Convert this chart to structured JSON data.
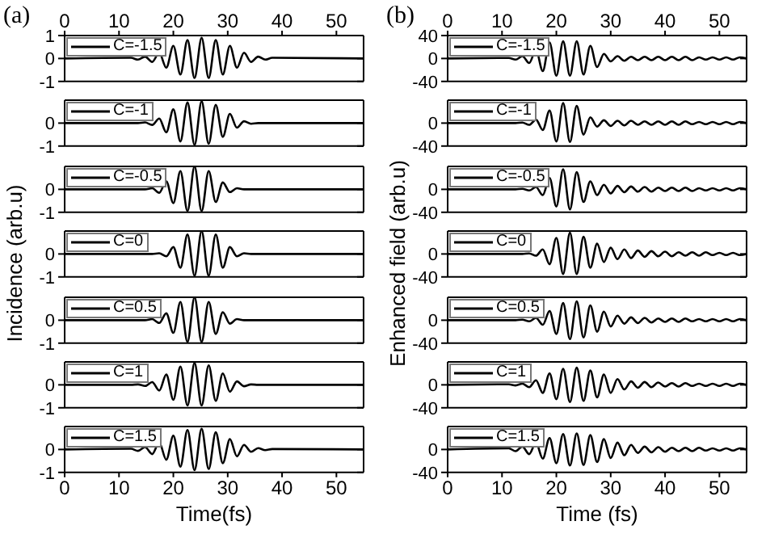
{
  "chart_data": [
    {
      "type": "line",
      "title": "(a)",
      "x2lim": [
        0,
        55
      ],
      "x2ticks": [
        0,
        10,
        20,
        30,
        40,
        50
      ],
      "xlim": [
        0,
        55
      ],
      "xticks": [
        0,
        10,
        20,
        30,
        40,
        50
      ],
      "ylim": [
        -1,
        1
      ],
      "yticks": [
        -1,
        0,
        1
      ],
      "tick_labels": "y",
      "legend": "top left",
      "x": [
        0,
        12.2,
        13.5,
        14.8,
        16.1,
        17.4,
        18.7,
        20,
        21.3,
        22.6,
        23.9,
        25.2,
        26.5,
        27.8,
        29.1,
        30.4,
        31.7,
        33,
        34.3,
        35.6,
        36.9,
        38.2,
        55
      ],
      "series": [
        {
          "name": "C=-1.5",
          "color": "#000000",
          "values": [
            0,
            0.03,
            -0.05,
            0.08,
            -0.15,
            0.25,
            -0.4,
            0.55,
            -0.7,
            0.8,
            -0.85,
            0.9,
            -0.85,
            0.8,
            -0.7,
            0.55,
            -0.4,
            0.25,
            -0.15,
            0.08,
            -0.05,
            0.03,
            0
          ]
        }
      ]
    },
    {
      "type": "line",
      "xlim": [
        0,
        55
      ],
      "xticks": [
        0,
        10,
        20,
        30,
        40,
        50
      ],
      "ylim": [
        -1,
        1
      ],
      "yticks": [
        -1,
        0
      ],
      "tick_labels": "y",
      "legend": "top left",
      "x": [
        0,
        12.2,
        13.5,
        14.8,
        16.1,
        17.4,
        18.7,
        20,
        21.3,
        22.6,
        23.9,
        25.2,
        26.5,
        27.8,
        29.1,
        30.4,
        31.7,
        33,
        34.3,
        35.6,
        36.9,
        38.2,
        55
      ],
      "series": [
        {
          "name": "C=-1",
          "color": "#000000",
          "values": [
            0,
            0,
            0,
            0.03,
            -0.08,
            0.2,
            -0.4,
            0.6,
            -0.8,
            0.9,
            -0.95,
            0.95,
            -0.9,
            0.8,
            -0.6,
            0.4,
            -0.2,
            0.08,
            -0.03,
            0,
            0,
            0,
            0
          ]
        }
      ]
    },
    {
      "type": "line",
      "xlim": [
        0,
        55
      ],
      "xticks": [
        0,
        10,
        20,
        30,
        40,
        50
      ],
      "ylim": [
        -1,
        1
      ],
      "yticks": [
        -1,
        0
      ],
      "tick_labels": "y",
      "legend": "top left",
      "x": [
        0,
        12.2,
        13.5,
        14.8,
        16.1,
        17.4,
        18.7,
        20,
        21.3,
        22.6,
        23.9,
        25.2,
        26.5,
        27.8,
        29.1,
        30.4,
        31.7,
        33,
        34.3,
        35.6,
        36.9,
        38.2,
        55
      ],
      "series": [
        {
          "name": "C=-0.5",
          "color": "#000000",
          "values": [
            0,
            0,
            0,
            0,
            0.05,
            -0.15,
            0.35,
            -0.6,
            0.8,
            -0.95,
            1,
            -0.95,
            0.8,
            -0.55,
            0.3,
            -0.12,
            0.05,
            0,
            0,
            0,
            0,
            0,
            0
          ]
        }
      ]
    },
    {
      "type": "line",
      "ylabel": "Incidence (arb.u)",
      "xlim": [
        0,
        55
      ],
      "xticks": [
        0,
        10,
        20,
        30,
        40,
        50
      ],
      "ylim": [
        -1,
        1
      ],
      "yticks": [
        -1,
        0
      ],
      "tick_labels": "y",
      "legend": "top left",
      "x": [
        0,
        12.2,
        13.5,
        14.8,
        16.1,
        17.4,
        18.7,
        20,
        21.3,
        22.6,
        23.9,
        25.2,
        26.5,
        27.8,
        29.1,
        30.4,
        31.7,
        33,
        34.3,
        35.6,
        36.9,
        38.2,
        55
      ],
      "series": [
        {
          "name": "C=0",
          "color": "#000000",
          "values": [
            0,
            0,
            0,
            0,
            0,
            0.03,
            -0.1,
            0.3,
            -0.6,
            0.85,
            -0.95,
            1,
            -0.95,
            0.85,
            -0.6,
            0.3,
            -0.1,
            0.03,
            0,
            0,
            0,
            0,
            0
          ]
        }
      ]
    },
    {
      "type": "line",
      "xlim": [
        0,
        55
      ],
      "xticks": [
        0,
        10,
        20,
        30,
        40,
        50
      ],
      "ylim": [
        -1,
        1
      ],
      "yticks": [
        -1,
        0
      ],
      "tick_labels": "y",
      "legend": "top left",
      "x": [
        0,
        12.2,
        13.5,
        14.8,
        16.1,
        17.4,
        18.7,
        20,
        21.3,
        22.6,
        23.9,
        25.2,
        26.5,
        27.8,
        29.1,
        30.4,
        31.7,
        33,
        34.3,
        35.6,
        36.9,
        38.2,
        55
      ],
      "series": [
        {
          "name": "C=0.5",
          "color": "#000000",
          "values": [
            0,
            0,
            0,
            0,
            0.05,
            -0.12,
            0.3,
            -0.55,
            0.8,
            -0.95,
            1,
            -0.95,
            0.8,
            -0.6,
            0.35,
            -0.15,
            0.05,
            0,
            0,
            0,
            0,
            0,
            0
          ]
        }
      ]
    },
    {
      "type": "line",
      "xlim": [
        0,
        55
      ],
      "xticks": [
        0,
        10,
        20,
        30,
        40,
        50
      ],
      "ylim": [
        -1,
        1
      ],
      "yticks": [
        -1,
        0
      ],
      "tick_labels": "y",
      "legend": "top left",
      "x": [
        0,
        12.2,
        13.5,
        14.8,
        16.1,
        17.4,
        18.7,
        20,
        21.3,
        22.6,
        23.9,
        25.2,
        26.5,
        27.8,
        29.1,
        30.4,
        31.7,
        33,
        34.3,
        35.6,
        36.9,
        38.2,
        55
      ],
      "series": [
        {
          "name": "C=1",
          "color": "#000000",
          "values": [
            0,
            0,
            0.02,
            -0.05,
            0.12,
            -0.25,
            0.45,
            -0.65,
            0.8,
            -0.9,
            0.95,
            -0.9,
            0.85,
            -0.7,
            0.5,
            -0.3,
            0.15,
            -0.06,
            0.02,
            0,
            0,
            0,
            0
          ]
        }
      ]
    },
    {
      "type": "line",
      "xlabel": "Time(fs)",
      "xlim": [
        0,
        55
      ],
      "xticks": [
        0,
        10,
        20,
        30,
        40,
        50
      ],
      "ylim": [
        -1,
        1
      ],
      "yticks": [
        -1,
        0
      ],
      "legend": "top left",
      "x": [
        0,
        12.2,
        13.5,
        14.8,
        16.1,
        17.4,
        18.7,
        20,
        21.3,
        22.6,
        23.9,
        25.2,
        26.5,
        27.8,
        29.1,
        30.4,
        31.7,
        33,
        34.3,
        35.6,
        36.9,
        38.2,
        55
      ],
      "series": [
        {
          "name": "C=1.5",
          "color": "#000000",
          "values": [
            0,
            0.03,
            -0.06,
            0.1,
            -0.2,
            0.3,
            -0.45,
            0.6,
            -0.75,
            0.85,
            -0.9,
            0.9,
            -0.85,
            0.75,
            -0.6,
            0.45,
            -0.3,
            0.2,
            -0.1,
            0.06,
            -0.03,
            0.02,
            0
          ]
        }
      ]
    },
    {
      "type": "line",
      "title": "(b)",
      "x2lim": [
        0,
        55
      ],
      "x2ticks": [
        0,
        10,
        20,
        30,
        40,
        50
      ],
      "xlim": [
        0,
        55
      ],
      "xticks": [
        0,
        10,
        20,
        30,
        40,
        50
      ],
      "ylim": [
        -40,
        40
      ],
      "yticks": [
        -40,
        0,
        40
      ],
      "tick_labels": "y",
      "legend": "top left",
      "x": [
        0,
        11.25,
        12.5,
        13.75,
        15,
        16.25,
        17.5,
        18.75,
        20,
        21.25,
        22.5,
        23.75,
        25,
        26.25,
        27.5,
        28.75,
        30,
        31.25,
        32.5,
        33.75,
        35,
        36.25,
        37.5,
        38.75,
        40,
        41.25,
        42.5,
        43.75,
        45,
        46.25,
        47.5,
        48.75,
        50,
        51.25,
        52.5,
        53.75,
        55
      ],
      "series": [
        {
          "name": "C=-1.5",
          "color": "#000000",
          "values": [
            0,
            1,
            -2,
            4,
            -8,
            15,
            -22,
            28,
            -30,
            30,
            -30,
            30,
            -28,
            22,
            -15,
            8,
            -5,
            4,
            -4,
            3,
            -3,
            3,
            -3,
            3,
            -3,
            3,
            -3,
            3,
            -3,
            2,
            -2,
            2,
            -2,
            2,
            -2,
            2,
            0
          ]
        }
      ]
    },
    {
      "type": "line",
      "xlim": [
        0,
        55
      ],
      "xticks": [
        0,
        10,
        20,
        30,
        40,
        50
      ],
      "ylim": [
        -40,
        40
      ],
      "yticks": [
        -40,
        0
      ],
      "tick_labels": "y",
      "legend": "top left",
      "x": [
        0,
        11.25,
        12.5,
        13.75,
        15,
        16.25,
        17.5,
        18.75,
        20,
        21.25,
        22.5,
        23.75,
        25,
        26.25,
        27.5,
        28.75,
        30,
        31.25,
        32.5,
        33.75,
        35,
        36.25,
        37.5,
        38.75,
        40,
        41.25,
        42.5,
        43.75,
        45,
        46.25,
        47.5,
        48.75,
        50,
        51.25,
        52.5,
        53.75,
        55
      ],
      "series": [
        {
          "name": "C=-1",
          "color": "#000000",
          "values": [
            0,
            0,
            0,
            1,
            -3,
            6,
            -12,
            22,
            -32,
            35,
            -33,
            30,
            -20,
            10,
            -6,
            5,
            -5,
            4,
            -4,
            4,
            -3,
            3,
            -3,
            3,
            -3,
            3,
            -3,
            3,
            -2,
            2,
            -2,
            2,
            -2,
            2,
            -2,
            2,
            0
          ]
        }
      ]
    },
    {
      "type": "line",
      "xlim": [
        0,
        55
      ],
      "xticks": [
        0,
        10,
        20,
        30,
        40,
        50
      ],
      "ylim": [
        -40,
        40
      ],
      "yticks": [
        -40,
        0
      ],
      "tick_labels": "y",
      "legend": "top left",
      "x": [
        0,
        11.25,
        12.5,
        13.75,
        15,
        16.25,
        17.5,
        18.75,
        20,
        21.25,
        22.5,
        23.75,
        25,
        26.25,
        27.5,
        28.75,
        30,
        31.25,
        32.5,
        33.75,
        35,
        36.25,
        37.5,
        38.75,
        40,
        41.25,
        42.5,
        43.75,
        45,
        46.25,
        47.5,
        48.75,
        50,
        51.25,
        52.5,
        53.75,
        55
      ],
      "series": [
        {
          "name": "C=-0.5",
          "color": "#000000",
          "values": [
            0,
            0,
            0,
            1,
            -2,
            4,
            -10,
            20,
            -30,
            35,
            -35,
            30,
            -22,
            14,
            -10,
            8,
            -7,
            6,
            -5,
            5,
            -4,
            4,
            -4,
            3,
            -3,
            3,
            -3,
            3,
            -3,
            2,
            -2,
            2,
            -2,
            2,
            -2,
            2,
            0
          ]
        }
      ]
    },
    {
      "type": "line",
      "ylabel": "Enhanced field (arb.u)",
      "xlim": [
        0,
        55
      ],
      "xticks": [
        0,
        10,
        20,
        30,
        40,
        50
      ],
      "ylim": [
        -40,
        40
      ],
      "yticks": [
        -40,
        0
      ],
      "tick_labels": "y",
      "legend": "top left",
      "x": [
        0,
        11.25,
        12.5,
        13.75,
        15,
        16.25,
        17.5,
        18.75,
        20,
        21.25,
        22.5,
        23.75,
        25,
        26.25,
        27.5,
        28.75,
        30,
        31.25,
        32.5,
        33.75,
        35,
        36.25,
        37.5,
        38.75,
        40,
        41.25,
        42.5,
        43.75,
        45,
        46.25,
        47.5,
        48.75,
        50,
        51.25,
        52.5,
        53.75,
        55
      ],
      "series": [
        {
          "name": "C=0",
          "color": "#000000",
          "values": [
            0,
            0,
            0,
            0,
            1,
            -3,
            8,
            -18,
            28,
            -35,
            37,
            -35,
            30,
            -24,
            18,
            -14,
            11,
            -9,
            8,
            -7,
            6,
            -5,
            5,
            -4,
            4,
            -4,
            3,
            -3,
            3,
            -3,
            3,
            -2,
            2,
            -2,
            2,
            -2,
            0
          ]
        }
      ]
    },
    {
      "type": "line",
      "xlim": [
        0,
        55
      ],
      "xticks": [
        0,
        10,
        20,
        30,
        40,
        50
      ],
      "ylim": [
        -40,
        40
      ],
      "yticks": [
        -40,
        0
      ],
      "tick_labels": "y",
      "legend": "top left",
      "x": [
        0,
        11.25,
        12.5,
        13.75,
        15,
        16.25,
        17.5,
        18.75,
        20,
        21.25,
        22.5,
        23.75,
        25,
        26.25,
        27.5,
        28.75,
        30,
        31.25,
        32.5,
        33.75,
        35,
        36.25,
        37.5,
        38.75,
        40,
        41.25,
        42.5,
        43.75,
        45,
        46.25,
        47.5,
        48.75,
        50,
        51.25,
        52.5,
        53.75,
        55
      ],
      "series": [
        {
          "name": "C=0.5",
          "color": "#000000",
          "values": [
            0,
            0,
            0,
            1,
            -2,
            4,
            -8,
            16,
            -24,
            30,
            -33,
            33,
            -30,
            26,
            -20,
            15,
            -11,
            8,
            -6,
            5,
            -5,
            4,
            -4,
            3,
            -3,
            3,
            -3,
            3,
            -2,
            2,
            -2,
            2,
            -2,
            2,
            -2,
            2,
            0
          ]
        }
      ]
    },
    {
      "type": "line",
      "xlim": [
        0,
        55
      ],
      "xticks": [
        0,
        10,
        20,
        30,
        40,
        50
      ],
      "ylim": [
        -40,
        40
      ],
      "yticks": [
        -40,
        0
      ],
      "tick_labels": "y",
      "legend": "top left",
      "x": [
        0,
        11.25,
        12.5,
        13.75,
        15,
        16.25,
        17.5,
        18.75,
        20,
        21.25,
        22.5,
        23.75,
        25,
        26.25,
        27.5,
        28.75,
        30,
        31.25,
        32.5,
        33.75,
        35,
        36.25,
        37.5,
        38.75,
        40,
        41.25,
        42.5,
        43.75,
        45,
        46.25,
        47.5,
        48.75,
        50,
        51.25,
        52.5,
        53.75,
        55
      ],
      "series": [
        {
          "name": "C=1",
          "color": "#000000",
          "values": [
            0,
            1,
            -1,
            2,
            -4,
            8,
            -14,
            20,
            -25,
            28,
            -30,
            30,
            -28,
            25,
            -22,
            18,
            -14,
            10,
            -8,
            6,
            -5,
            5,
            -4,
            4,
            -3,
            3,
            -3,
            3,
            -2,
            2,
            -2,
            2,
            -2,
            2,
            -2,
            2,
            0
          ]
        }
      ]
    },
    {
      "type": "line",
      "xlabel": "Time (fs)",
      "xlim": [
        0,
        55
      ],
      "xticks": [
        0,
        10,
        20,
        30,
        40,
        50
      ],
      "ylim": [
        -40,
        40
      ],
      "yticks": [
        -40,
        0
      ],
      "legend": "top left",
      "x": [
        0,
        11.25,
        12.5,
        13.75,
        15,
        16.25,
        17.5,
        18.75,
        20,
        21.25,
        22.5,
        23.75,
        25,
        26.25,
        27.5,
        28.75,
        30,
        31.25,
        32.5,
        33.75,
        35,
        36.25,
        37.5,
        38.75,
        40,
        41.25,
        42.5,
        43.75,
        45,
        46.25,
        47.5,
        48.75,
        50,
        51.25,
        52.5,
        53.75,
        55
      ],
      "series": [
        {
          "name": "C=1.5",
          "color": "#000000",
          "values": [
            0,
            2,
            -3,
            5,
            -8,
            12,
            -16,
            20,
            -24,
            27,
            -28,
            28,
            -27,
            25,
            -22,
            18,
            -15,
            12,
            -10,
            8,
            -6,
            5,
            -5,
            4,
            -4,
            3,
            -3,
            3,
            -3,
            3,
            -2,
            2,
            -2,
            2,
            -2,
            2,
            0
          ]
        }
      ]
    }
  ]
}
